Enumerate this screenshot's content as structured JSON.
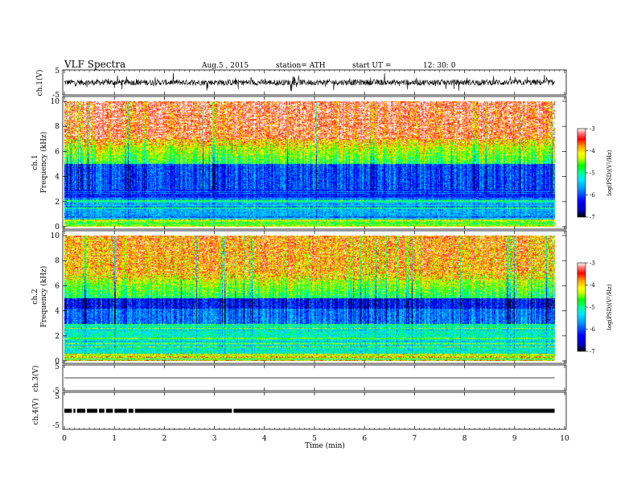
{
  "header": {
    "title": "VLF  Spectra",
    "date": "Aug.5  , 2015",
    "station": "station= ATH",
    "start_label": "start  UT  =",
    "start_time": "12: 30: 0"
  },
  "chart_data": [
    {
      "type": "line",
      "panel": "ch1-waveform",
      "ylabel": "ch.1(V)",
      "yticks": [
        "5",
        "-5"
      ],
      "ylim": [
        -5,
        5
      ],
      "xlim": [
        0,
        10
      ],
      "signal": "broadband noise, approx -1.8 to +1.8 V with spikes, 0 to 9.8 min"
    },
    {
      "type": "heatmap",
      "panel": "ch1-spectrogram",
      "ylabel_top": "ch.1",
      "ylabel": "Frequency  (kHz)",
      "yticks": [
        "0",
        "2",
        "4",
        "6",
        "8",
        "10"
      ],
      "ylim": [
        0,
        10
      ],
      "xlim": [
        0,
        10
      ],
      "data_end_min": 9.8,
      "colorbar": {
        "label": "log(PSD)(V²/Hz)",
        "ticks": [
          "-3",
          "-4",
          "-5",
          "-6",
          "-7"
        ],
        "range": [
          -7,
          -3
        ]
      },
      "features": [
        {
          "freq_khz": [
            7,
            10
          ],
          "level": -3.6
        },
        {
          "freq_khz": [
            5,
            7
          ],
          "level": -4.8
        },
        {
          "freq_khz": [
            3,
            5
          ],
          "level": -6.2
        },
        {
          "freq_khz": [
            0,
            3
          ],
          "level": -5.6
        }
      ]
    },
    {
      "type": "heatmap",
      "panel": "ch2-spectrogram",
      "ylabel_top": "ch.2",
      "ylabel": "Frequency  (kHz)",
      "yticks": [
        "0",
        "2",
        "4",
        "6",
        "8",
        "10"
      ],
      "ylim": [
        0,
        10
      ],
      "xlim": [
        0,
        10
      ],
      "data_end_min": 9.8,
      "colorbar": {
        "label": "log(PSD)(V²/Hz)",
        "ticks": [
          "-3",
          "-4",
          "-5",
          "-6",
          "-7"
        ],
        "range": [
          -7,
          -3
        ]
      },
      "features": [
        {
          "freq_khz": [
            7,
            10
          ],
          "level": -4.0
        },
        {
          "freq_khz": [
            5,
            7
          ],
          "level": -4.9
        },
        {
          "freq_khz": [
            3,
            5
          ],
          "level": -6.0
        },
        {
          "freq_khz": [
            0,
            3
          ],
          "level": -5.2
        }
      ]
    },
    {
      "type": "line",
      "panel": "ch3-waveform",
      "ylabel": "ch.3(V)",
      "yticks": [
        "5",
        "-5"
      ],
      "ylim": [
        -5,
        5
      ],
      "xlim": [
        0,
        10
      ],
      "signal": "flat line near 0 V"
    },
    {
      "type": "line",
      "panel": "ch4-waveform",
      "ylabel": "ch.4(V)",
      "yticks": [
        "5",
        "-5"
      ],
      "ylim": [
        -5,
        5
      ],
      "xlim": [
        0,
        10
      ],
      "xlabel": "Time  (min)",
      "xticks": [
        "0",
        "1",
        "2",
        "3",
        "4",
        "5",
        "6",
        "7",
        "8",
        "9",
        "10"
      ],
      "signal": "thick band near 0 V with brief gaps"
    }
  ],
  "colors": {
    "scale": [
      "#000000",
      "#0000c8",
      "#0000ff",
      "#0096ff",
      "#00e6ff",
      "#00ff96",
      "#00ff00",
      "#c8ff00",
      "#ffff00",
      "#ffa000",
      "#ff0000",
      "#ff8080",
      "#ffffff"
    ]
  }
}
